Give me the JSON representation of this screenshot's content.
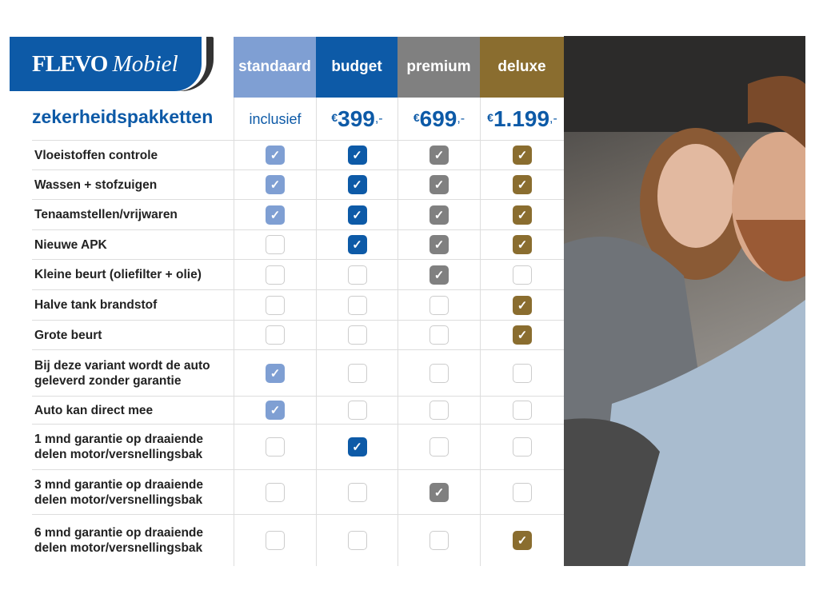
{
  "brand": {
    "name": "FLEVO",
    "name_italic": "Mobiel"
  },
  "title": "zekerheidspakketten",
  "packages": [
    {
      "name": "standaard",
      "price": "inclusief",
      "color": "#7f9fd3"
    },
    {
      "name": "budget",
      "price_symbol": "€",
      "price": "399",
      "price_suffix": ",-",
      "color": "#0d5aa7"
    },
    {
      "name": "premium",
      "price_symbol": "€",
      "price": "699",
      "price_suffix": ",-",
      "color": "#808080"
    },
    {
      "name": "deluxe",
      "price_symbol": "€",
      "price": "1.199",
      "price_suffix": ",-",
      "color": "#8a6d2f"
    }
  ],
  "features": [
    {
      "label": "Vloeistoffen controle",
      "checks": [
        true,
        true,
        true,
        true
      ]
    },
    {
      "label": "Wassen + stofzuigen",
      "checks": [
        true,
        true,
        true,
        true
      ]
    },
    {
      "label": "Tenaamstellen/vrijwaren",
      "checks": [
        true,
        true,
        true,
        true
      ]
    },
    {
      "label": "Nieuwe APK",
      "checks": [
        false,
        true,
        true,
        true
      ]
    },
    {
      "label": "Kleine beurt (oliefilter + olie)",
      "checks": [
        false,
        false,
        true,
        false
      ]
    },
    {
      "label": "Halve tank brandstof",
      "checks": [
        false,
        false,
        false,
        true
      ]
    },
    {
      "label": "Grote beurt",
      "checks": [
        false,
        false,
        false,
        true
      ]
    },
    {
      "label": "Bij deze variant wordt de auto geleverd zonder garantie",
      "checks": [
        true,
        false,
        false,
        false
      ]
    },
    {
      "label": "Auto kan direct mee",
      "checks": [
        true,
        false,
        false,
        false
      ]
    },
    {
      "label": "1 mnd garantie op draaiende delen motor/versnellingsbak",
      "checks": [
        false,
        true,
        false,
        false
      ]
    },
    {
      "label": "3 mnd garantie op draaiende delen motor/versnellingsbak",
      "checks": [
        false,
        false,
        true,
        false
      ]
    },
    {
      "label": "6 mnd garantie op draaiende delen motor/versnellingsbak",
      "checks": [
        false,
        false,
        false,
        true
      ]
    }
  ]
}
